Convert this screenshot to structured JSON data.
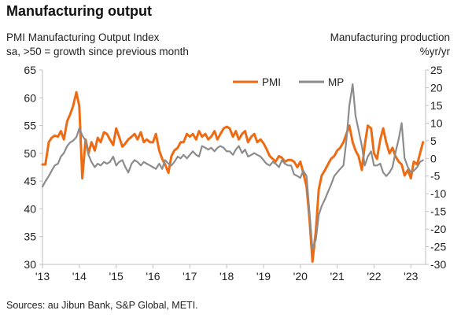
{
  "title": "Manufacturing output",
  "left_subtitle_1": "PMI Manufacturing Output Index",
  "left_subtitle_2": "sa, >50 = growth since previous month",
  "right_subtitle_1": "Manufacturing production",
  "right_subtitle_2": "%yr/yr",
  "source": "Sources: au Jibun Bank, S&P Global, METI.",
  "colors": {
    "pmi": "#ED6B12",
    "mp": "#8C8C8C",
    "axis": "#BFBFBF"
  },
  "chart_data": {
    "type": "line",
    "xlim": [
      2013.0,
      2023.4
    ],
    "x_tick_values": [
      2013,
      2014,
      2015,
      2016,
      2017,
      2018,
      2019,
      2020,
      2021,
      2022,
      2023
    ],
    "x_tick_labels": [
      "'13",
      "'14",
      "'15",
      "'16",
      "'17",
      "'18",
      "'19",
      "'20",
      "'21",
      "'22",
      "'23"
    ],
    "y_left": {
      "lim": [
        30,
        65
      ],
      "ticks": [
        30,
        35,
        40,
        45,
        50,
        55,
        60,
        65
      ]
    },
    "y_right": {
      "lim": [
        -30,
        25
      ],
      "ticks": [
        -30,
        -25,
        -20,
        -15,
        -10,
        -5,
        0,
        5,
        10,
        15,
        20,
        25
      ]
    },
    "legend": {
      "placement": "top-center"
    },
    "series": [
      {
        "name": "PMI",
        "axis": "left",
        "color": "#ED6B12",
        "x": [
          2013.0,
          2013.08,
          2013.17,
          2013.25,
          2013.33,
          2013.42,
          2013.5,
          2013.58,
          2013.67,
          2013.75,
          2013.83,
          2013.92,
          2014.0,
          2014.08,
          2014.17,
          2014.25,
          2014.33,
          2014.42,
          2014.5,
          2014.58,
          2014.67,
          2014.75,
          2014.83,
          2014.92,
          2015.0,
          2015.08,
          2015.17,
          2015.25,
          2015.33,
          2015.42,
          2015.5,
          2015.58,
          2015.67,
          2015.75,
          2015.83,
          2015.92,
          2016.0,
          2016.08,
          2016.17,
          2016.25,
          2016.33,
          2016.42,
          2016.5,
          2016.58,
          2016.67,
          2016.75,
          2016.83,
          2016.92,
          2017.0,
          2017.08,
          2017.17,
          2017.25,
          2017.33,
          2017.42,
          2017.5,
          2017.58,
          2017.67,
          2017.75,
          2017.83,
          2017.92,
          2018.0,
          2018.08,
          2018.17,
          2018.25,
          2018.33,
          2018.42,
          2018.5,
          2018.58,
          2018.67,
          2018.75,
          2018.83,
          2018.92,
          2019.0,
          2019.08,
          2019.17,
          2019.25,
          2019.33,
          2019.42,
          2019.5,
          2019.58,
          2019.67,
          2019.75,
          2019.83,
          2019.92,
          2020.0,
          2020.08,
          2020.17,
          2020.25,
          2020.33,
          2020.42,
          2020.5,
          2020.58,
          2020.67,
          2020.75,
          2020.83,
          2020.92,
          2021.0,
          2021.08,
          2021.17,
          2021.25,
          2021.33,
          2021.42,
          2021.5,
          2021.58,
          2021.67,
          2021.75,
          2021.83,
          2021.92,
          2022.0,
          2022.08,
          2022.17,
          2022.25,
          2022.33,
          2022.42,
          2022.5,
          2022.58,
          2022.67,
          2022.75,
          2022.83,
          2022.92,
          2023.0,
          2023.08,
          2023.17,
          2023.25,
          2023.33
        ],
        "values": [
          48.0,
          48.0,
          52.0,
          52.8,
          53.2,
          53.0,
          54.0,
          52.5,
          55.8,
          57.0,
          58.5,
          61.0,
          58.5,
          45.5,
          52.5,
          50.0,
          52.0,
          50.5,
          52.8,
          52.0,
          53.8,
          53.5,
          52.5,
          51.5,
          54.5,
          53.0,
          51.2,
          51.8,
          52.5,
          53.0,
          53.5,
          52.5,
          53.8,
          52.0,
          52.5,
          52.0,
          52.0,
          53.5,
          50.5,
          49.0,
          48.0,
          46.5,
          49.5,
          50.5,
          51.0,
          52.0,
          52.0,
          53.5,
          53.0,
          53.5,
          52.5,
          54.0,
          53.0,
          53.5,
          52.5,
          53.0,
          54.0,
          52.5,
          53.5,
          54.5,
          54.8,
          54.5,
          53.0,
          54.0,
          52.5,
          53.5,
          54.0,
          52.0,
          53.0,
          53.5,
          52.0,
          52.5,
          51.8,
          50.8,
          49.5,
          49.0,
          48.5,
          49.5,
          49.2,
          48.5,
          48.8,
          48.8,
          48.5,
          47.5,
          48.5,
          46.5,
          44.0,
          38.0,
          30.5,
          36.0,
          43.5,
          46.0,
          47.0,
          48.0,
          49.0,
          49.5,
          50.5,
          51.0,
          52.0,
          53.5,
          55.0,
          52.0,
          50.5,
          49.5,
          47.0,
          51.5,
          55.0,
          54.5,
          50.0,
          49.0,
          52.5,
          54.5,
          52.0,
          50.0,
          51.0,
          49.5,
          48.5,
          48.0,
          46.0,
          47.0,
          45.5,
          48.5,
          48.0,
          50.0,
          52.0
        ]
      },
      {
        "name": "MP",
        "axis": "right",
        "color": "#8C8C8C",
        "x": [
          2013.0,
          2013.08,
          2013.17,
          2013.25,
          2013.33,
          2013.42,
          2013.5,
          2013.58,
          2013.67,
          2013.75,
          2013.83,
          2013.92,
          2014.0,
          2014.08,
          2014.17,
          2014.25,
          2014.33,
          2014.42,
          2014.5,
          2014.58,
          2014.67,
          2014.75,
          2014.83,
          2014.92,
          2015.0,
          2015.08,
          2015.17,
          2015.25,
          2015.33,
          2015.42,
          2015.5,
          2015.58,
          2015.67,
          2015.75,
          2015.83,
          2015.92,
          2016.0,
          2016.08,
          2016.17,
          2016.25,
          2016.33,
          2016.42,
          2016.5,
          2016.58,
          2016.67,
          2016.75,
          2016.83,
          2016.92,
          2017.0,
          2017.08,
          2017.17,
          2017.25,
          2017.33,
          2017.42,
          2017.5,
          2017.58,
          2017.67,
          2017.75,
          2017.83,
          2017.92,
          2018.0,
          2018.08,
          2018.17,
          2018.25,
          2018.33,
          2018.42,
          2018.5,
          2018.58,
          2018.67,
          2018.75,
          2018.83,
          2018.92,
          2019.0,
          2019.08,
          2019.17,
          2019.25,
          2019.33,
          2019.42,
          2019.5,
          2019.58,
          2019.67,
          2019.75,
          2019.83,
          2019.92,
          2020.0,
          2020.08,
          2020.17,
          2020.25,
          2020.33,
          2020.42,
          2020.5,
          2020.58,
          2020.67,
          2020.75,
          2020.83,
          2020.92,
          2021.0,
          2021.08,
          2021.17,
          2021.25,
          2021.33,
          2021.42,
          2021.5,
          2021.58,
          2021.67,
          2021.75,
          2021.83,
          2021.92,
          2022.0,
          2022.08,
          2022.17,
          2022.25,
          2022.33,
          2022.42,
          2022.5,
          2022.58,
          2022.67,
          2022.75,
          2022.83,
          2022.92,
          2023.0,
          2023.08,
          2023.17,
          2023.25,
          2023.33
        ],
        "values": [
          -8.0,
          -6.5,
          -5.0,
          -3.5,
          -2.0,
          -1.5,
          0.5,
          1.5,
          3.5,
          4.5,
          5.0,
          6.0,
          8.5,
          6.5,
          5.0,
          1.0,
          -1.0,
          -2.5,
          -1.5,
          -2.0,
          -1.0,
          -1.5,
          -1.0,
          0.5,
          -2.0,
          -1.0,
          -0.5,
          -2.5,
          -4.0,
          -1.5,
          -0.5,
          -1.0,
          -2.0,
          -1.0,
          -1.5,
          -2.0,
          -2.5,
          -3.0,
          -1.5,
          -3.0,
          -0.5,
          -1.5,
          -2.0,
          -1.0,
          0.5,
          0.0,
          1.0,
          0.0,
          1.0,
          2.0,
          1.0,
          0.5,
          3.5,
          3.0,
          2.5,
          3.0,
          2.0,
          3.0,
          3.5,
          3.0,
          2.0,
          2.0,
          1.0,
          2.5,
          3.5,
          1.5,
          2.5,
          0.5,
          1.0,
          1.5,
          1.0,
          0.5,
          -0.5,
          -1.5,
          -2.0,
          -1.0,
          -1.5,
          -2.5,
          -0.5,
          -1.5,
          -2.0,
          -2.0,
          -4.5,
          -5.0,
          -5.5,
          -3.5,
          -5.0,
          -15.5,
          -25.5,
          -23.0,
          -16.0,
          -13.5,
          -11.5,
          -9.5,
          -7.5,
          -5.0,
          -4.0,
          -3.0,
          -2.0,
          5.0,
          15.0,
          21.0,
          12.0,
          8.0,
          3.5,
          -2.0,
          0.5,
          2.0,
          -2.0,
          -2.0,
          -1.5,
          -4.0,
          -5.0,
          -4.0,
          -2.5,
          1.5,
          5.5,
          10.0,
          0.0,
          -2.5,
          -4.0,
          -3.5,
          -2.5,
          -1.0,
          -0.5
        ]
      }
    ]
  }
}
